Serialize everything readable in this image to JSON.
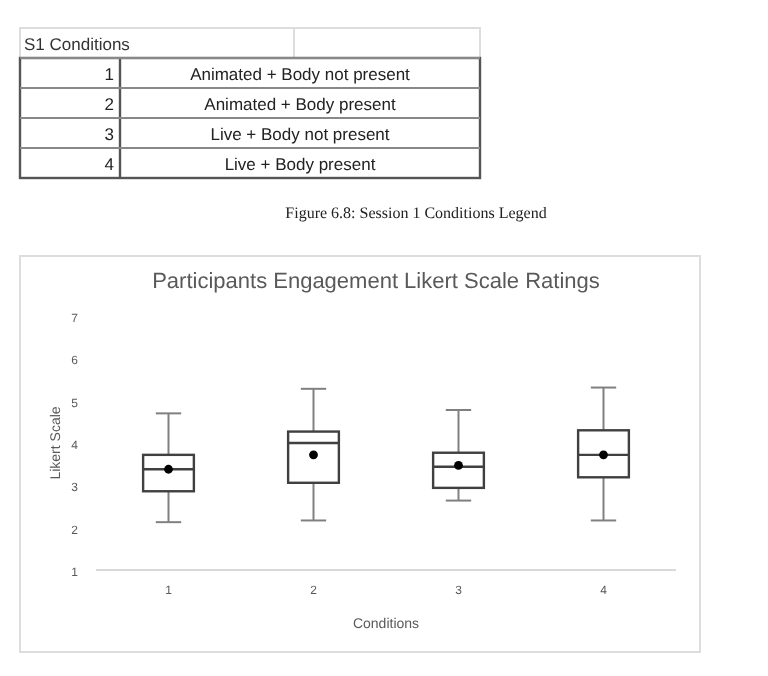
{
  "chart_data": {
    "type": "box",
    "title": "Participants Engagement Likert Scale Ratings",
    "xlabel": "Conditions",
    "ylabel": "Likert Scale",
    "categories": [
      "1",
      "2",
      "3",
      "4"
    ],
    "boxes": [
      {
        "low": 2.13,
        "q1": 2.86,
        "median": 3.38,
        "q3": 3.72,
        "high": 4.7
      },
      {
        "low": 2.17,
        "q1": 3.06,
        "median": 4.0,
        "q3": 4.27,
        "high": 5.28
      },
      {
        "low": 2.64,
        "q1": 2.94,
        "median": 3.44,
        "q3": 3.77,
        "high": 4.78
      },
      {
        "low": 2.17,
        "q1": 3.19,
        "median": 3.72,
        "q3": 4.3,
        "high": 5.31
      }
    ],
    "series": [
      {
        "type": "scatter",
        "x": [
          "1",
          "2",
          "3",
          "4"
        ],
        "values": [
          3.38,
          3.72,
          3.47,
          3.72
        ],
        "color": "#000000"
      }
    ],
    "marker": "circle",
    "color": "#404040",
    "ylim": [
      1,
      7
    ],
    "yticks": [
      1,
      2,
      3,
      4,
      5,
      6,
      7
    ],
    "grid": false,
    "annotations": [
      "S1 Conditions",
      "1",
      "Animated + Body not present",
      "2",
      "Animated + Body present",
      "3",
      "Live + Body not present",
      "4",
      "Live + Body present",
      "Figure 6.8: Session 1 Conditions Legend"
    ]
  }
}
